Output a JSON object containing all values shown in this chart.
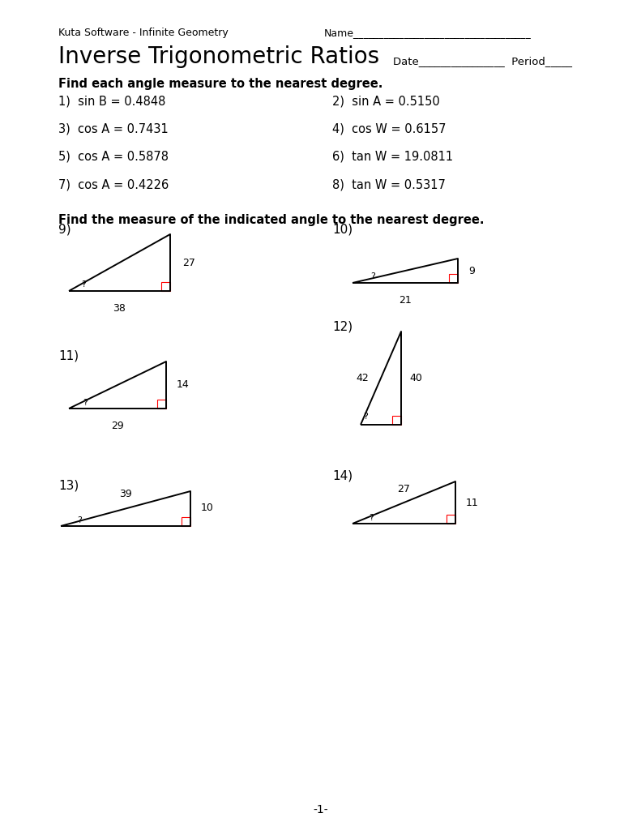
{
  "bg_color": "#ffffff",
  "header_left": "Kuta Software - Infinite Geometry",
  "header_right_name": "Name___________________________________",
  "title": "Inverse Trigonometric Ratios",
  "date_label": "Date",
  "date_line": "________________",
  "period_label": "Period_____",
  "section1_header": "Find each angle measure to the nearest degree.",
  "problems": [
    [
      "1)  sin B = 0.4848",
      "2)  sin A = 0.5150"
    ],
    [
      "3)  cos A = 0.7431",
      "4)  cos W = 0.6157"
    ],
    [
      "5)  cos A = 0.5878",
      "6)  tan W = 19.0811"
    ],
    [
      "7)  cos A = 0.4226",
      "8)  tan W = 0.5317"
    ]
  ],
  "section2_header": "Find the measure of the indicated angle to the nearest degree.",
  "page_number": "-1-",
  "tri_num_fontsize": 11,
  "tri_label_fontsize": 9,
  "tri_qm_fontsize": 8
}
